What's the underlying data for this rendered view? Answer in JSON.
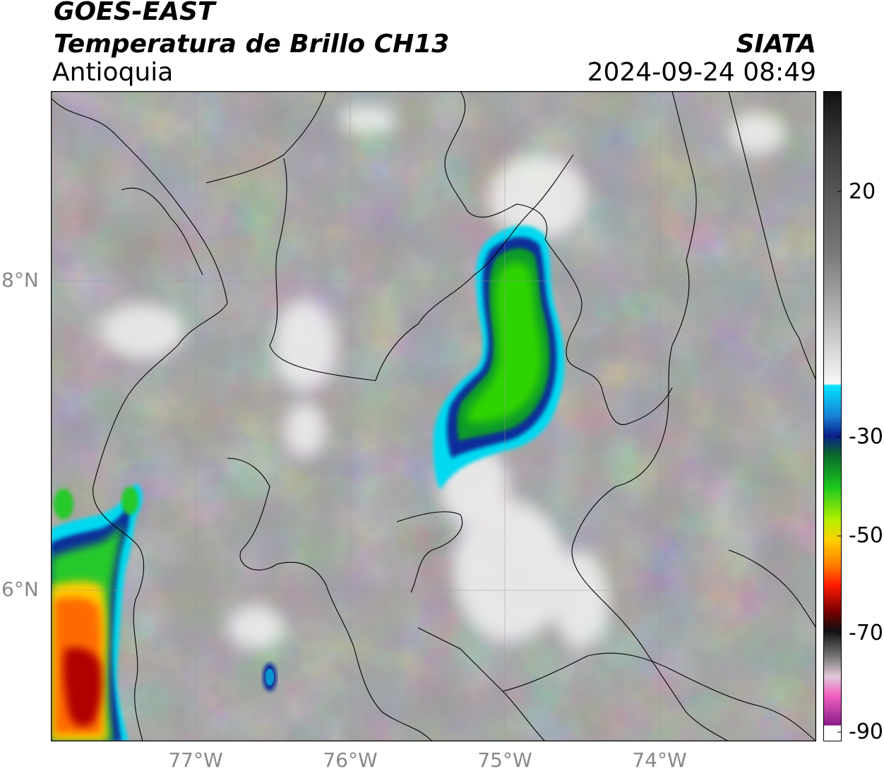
{
  "header": {
    "title": "GOES-EAST",
    "subtitle": "Temperatura de Brillo CH13",
    "region": "Antioquia",
    "source": "SIATA",
    "datetime": "2024-09-24 08:49"
  },
  "map": {
    "lon_range": [
      -77.95,
      -73.0
    ],
    "lat_range": [
      5.0,
      9.2
    ],
    "x_ticks": [
      "77°W",
      "76°W",
      "75°W",
      "74°W"
    ],
    "x_tick_values": [
      -77,
      -76,
      -75,
      -74
    ],
    "y_ticks": [
      "8°N",
      "6°N"
    ],
    "y_tick_values": [
      8,
      6
    ],
    "gridlines": true,
    "colors": {
      "cold_cloud_green": "#33cc33",
      "deep_cold_red": "#cc0000",
      "cyan_edge": "#00e5ff",
      "dark_blue": "#0a2a8a",
      "background_gray": "#8a8a8a"
    }
  },
  "colorbar": {
    "tick_labels": [
      "20",
      "-30",
      "-50",
      "-70",
      "-90"
    ],
    "tick_values": [
      20,
      -30,
      -50,
      -70,
      -90
    ],
    "value_range": [
      -90,
      40
    ]
  }
}
